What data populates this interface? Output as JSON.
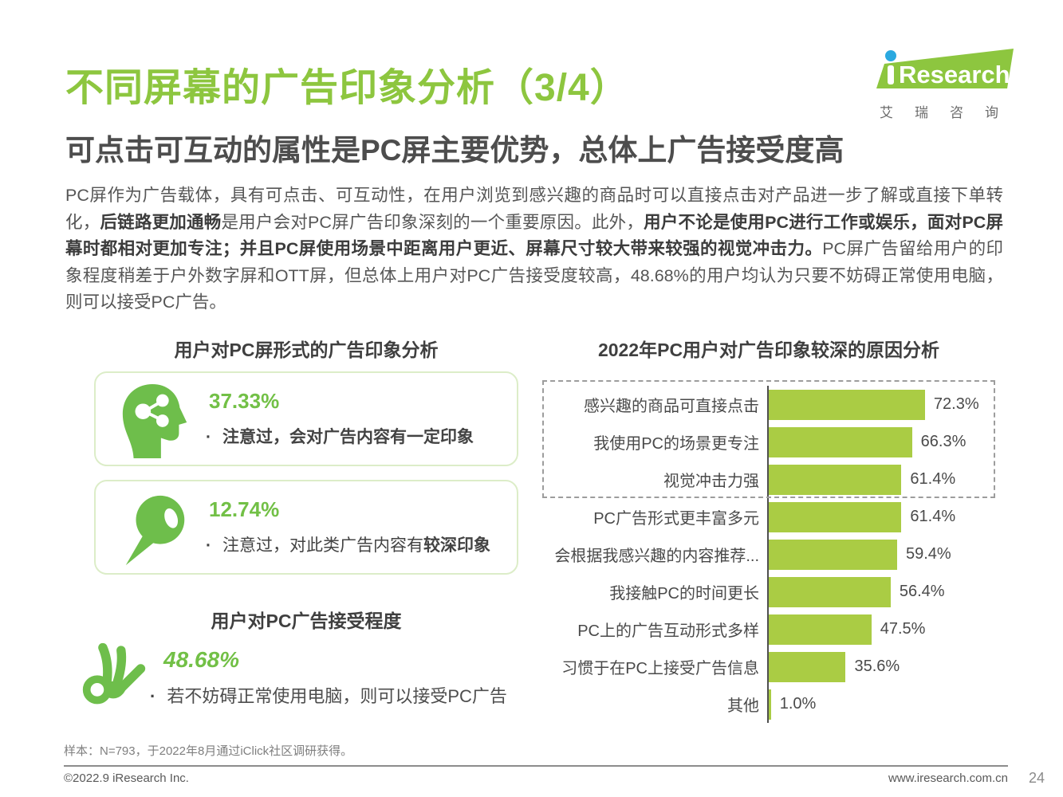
{
  "header": {
    "title": "不同屏幕的广告印象分析（3/4）",
    "subtitle": "可点击可互动的属性是PC屏主要优势，总体上广告接受度高",
    "logo": {
      "brand_i": "i",
      "brand": "Research",
      "subtext": "艾瑞咨询"
    }
  },
  "intro": {
    "segments": [
      {
        "text": "PC屏作为广告载体，具有可点击、可互动性，在用户浏览到感兴趣的商品时可以直接点击对产品进一步了解或直接下单转化，",
        "bold": false
      },
      {
        "text": "后链路更加通畅",
        "bold": true
      },
      {
        "text": "是用户会对PC屏广告印象深刻的一个重要原因。此外，",
        "bold": false
      },
      {
        "text": "用户不论是使用PC进行工作或娱乐，面对PC屏幕时都相对更加专注；并且PC屏使用场景中距离用户更近、屏幕尺寸较大带来较强的视觉冲击力。",
        "bold": true
      },
      {
        "text": "PC屏广告留给用户的印象程度稍差于户外数字屏和OTT屏，但总体上用户对PC广告接受度较高，48.68%的用户均认为只要不妨碍正常使用电脑，则可以接受PC广告。",
        "bold": false
      }
    ]
  },
  "left_panel": {
    "impression_title": "用户对PC屏形式的广告印象分析",
    "cards": [
      {
        "icon": "head-share-icon",
        "percent": "37.33%",
        "bullet": "·",
        "desc_segments": [
          {
            "text": "注意过，会对广告内容有一定印象",
            "bold": true
          }
        ]
      },
      {
        "icon": "speech-bubble-icon",
        "percent": "12.74%",
        "bullet": "·",
        "desc_segments": [
          {
            "text": "注意过，对此类广告内容有",
            "bold": false
          },
          {
            "text": "较深印象",
            "bold": true
          }
        ]
      }
    ],
    "acceptance_title": "用户对PC广告接受程度",
    "acceptance": {
      "icon": "ok-hand-icon",
      "percent": "48.68%",
      "bullet": "·",
      "desc_segments": [
        {
          "text": "若不妨碍正常使用电脑，则可以接受PC广告",
          "bold": false
        }
      ]
    }
  },
  "chart_data": {
    "type": "bar",
    "orientation": "horizontal",
    "title": "2022年PC用户对广告印象较深的原因分析",
    "categories": [
      "感兴趣的商品可直接点击",
      "我使用PC的场景更专注",
      "视觉冲击力强",
      "PC广告形式更丰富多元",
      "会根据我感兴趣的内容推荐...",
      "我接触PC的时间更长",
      "PC上的广告互动形式多样",
      "习惯于在PC上接受广告信息",
      "其他"
    ],
    "values": [
      72.3,
      66.3,
      61.4,
      61.4,
      59.4,
      56.4,
      47.5,
      35.6,
      1.0
    ],
    "value_labels": [
      "72.3%",
      "66.3%",
      "61.4%",
      "61.4%",
      "59.4%",
      "56.4%",
      "47.5%",
      "35.6%",
      "1.0%"
    ],
    "xlim": [
      0,
      100
    ],
    "bar_color": "#aacc44",
    "axis_color": "#4f4f4f",
    "highlight_box_rows": [
      0,
      1,
      2
    ],
    "legend": "none",
    "grid": false
  },
  "footer": {
    "note": "样本：N=793，于2022年8月通过iClick社区调研获得。",
    "copyright": "©2022.9 iResearch Inc.",
    "website": "www.iresearch.com.cn",
    "page_number": "24"
  },
  "colors": {
    "title_green": "#8dc63f",
    "icon_green": "#6ebe4b",
    "bar_green": "#aacc44",
    "logo_blue": "#2ba9e0",
    "dark_text": "#4d4d4d"
  }
}
